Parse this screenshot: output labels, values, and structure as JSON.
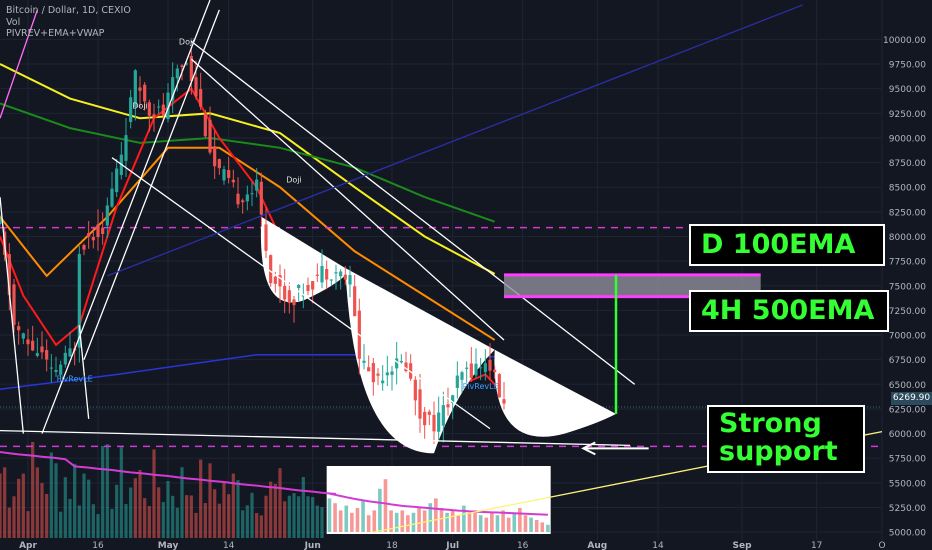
{
  "header": {
    "title": "Bitcoin / Dollar, 1D, CEXIO",
    "volume_label": "Vol",
    "indicators_label": "PIVREV+EMA+VWAP"
  },
  "last_price_tag": "6269.90",
  "annotations": {
    "d100ema": "D 100EMA",
    "h4_500ema": "4H 500EMA",
    "support_line1": "Strong",
    "support_line2": "support"
  },
  "candle_markers": [
    {
      "text": "Doji",
      "date": "2018-05-05",
      "price": 9950
    },
    {
      "text": "Doji",
      "date": "2018-04-25",
      "price": 9300
    },
    {
      "text": "Doji",
      "date": "2018-05-28",
      "price": 8550
    },
    {
      "text": "PivRevLE",
      "date": "2018-04-11",
      "price": 6530
    },
    {
      "text": "PivRevLE",
      "date": "2018-07-07",
      "price": 6450
    }
  ],
  "colors": {
    "background": "#131722",
    "up": "#26a69a",
    "down": "#ef5350",
    "ema_fast": "#ff1a1a",
    "ema_orange": "#ff8c00",
    "ema_yellow": "#f7f01e",
    "ema_green": "#1b8a1b",
    "vwap_blue": "#2835d8",
    "volume_ma": "#d33bd3",
    "dashed_level": "#d13bd3",
    "zone": "#8f8f9a",
    "zone_border": "#ff3cff",
    "target_line": "#33ff33"
  },
  "chart_data": {
    "type": "candlestick",
    "title": "Bitcoin / Dollar, 1D, CEXIO",
    "y_axis": {
      "range": [
        4920,
        10400
      ],
      "ticks": [
        5000,
        5250,
        5500,
        5750,
        6000,
        6250,
        6500,
        6750,
        7000,
        7250,
        7500,
        7750,
        8000,
        8250,
        8500,
        8750,
        9000,
        9250,
        9500,
        9750,
        10000
      ]
    },
    "x_axis": {
      "range": [
        "2018-03-26",
        "2018-10-01"
      ],
      "ticks": [
        {
          "label": "Apr",
          "date": "2018-04-01"
        },
        {
          "label": "16",
          "date": "2018-04-16"
        },
        {
          "label": "May",
          "date": "2018-05-01"
        },
        {
          "label": "14",
          "date": "2018-05-14"
        },
        {
          "label": "Jun",
          "date": "2018-06-01"
        },
        {
          "label": "18",
          "date": "2018-06-18"
        },
        {
          "label": "Jul",
          "date": "2018-07-01"
        },
        {
          "label": "16",
          "date": "2018-07-16"
        },
        {
          "label": "Aug",
          "date": "2018-08-01"
        },
        {
          "label": "14",
          "date": "2018-08-14"
        },
        {
          "label": "Sep",
          "date": "2018-09-01"
        },
        {
          "label": "17",
          "date": "2018-09-17"
        },
        {
          "label": "O",
          "date": "2018-10-01"
        }
      ]
    },
    "close_path": [
      [
        "2018-03-26",
        8100
      ],
      [
        "2018-03-29",
        7100
      ],
      [
        "2018-04-01",
        6900
      ],
      [
        "2018-04-04",
        6800
      ],
      [
        "2018-04-06",
        6600
      ],
      [
        "2018-04-09",
        6750
      ],
      [
        "2018-04-11",
        6900
      ],
      [
        "2018-04-12",
        7900
      ],
      [
        "2018-04-14",
        8000
      ],
      [
        "2018-04-17",
        8100
      ],
      [
        "2018-04-21",
        8850
      ],
      [
        "2018-04-24",
        9600
      ],
      [
        "2018-04-27",
        9300
      ],
      [
        "2018-04-30",
        9250
      ],
      [
        "2018-05-03",
        9700
      ],
      [
        "2018-05-05",
        9800
      ],
      [
        "2018-05-08",
        9300
      ],
      [
        "2018-05-11",
        8700
      ],
      [
        "2018-05-13",
        8600
      ],
      [
        "2018-05-16",
        8400
      ],
      [
        "2018-05-20",
        8500
      ],
      [
        "2018-05-23",
        7600
      ],
      [
        "2018-05-27",
        7350
      ],
      [
        "2018-05-31",
        7500
      ],
      [
        "2018-06-03",
        7650
      ],
      [
        "2018-06-06",
        7650
      ],
      [
        "2018-06-09",
        7550
      ],
      [
        "2018-06-11",
        6800
      ],
      [
        "2018-06-14",
        6550
      ],
      [
        "2018-06-18",
        6700
      ],
      [
        "2018-06-21",
        6700
      ],
      [
        "2018-06-24",
        6200
      ],
      [
        "2018-06-27",
        6100
      ],
      [
        "2018-06-30",
        6300
      ],
      [
        "2018-07-03",
        6600
      ],
      [
        "2018-07-07",
        6700
      ],
      [
        "2018-07-09",
        6700
      ],
      [
        "2018-07-11",
        6400
      ],
      [
        "2018-07-12",
        6270
      ]
    ],
    "last_price": 6269.9,
    "levels": [
      {
        "kind": "dashed",
        "price": 8090
      },
      {
        "kind": "dashed",
        "price": 5870
      },
      {
        "kind": "dotted",
        "price": 6269.9
      }
    ],
    "resistance_zone": {
      "from": "2018-07-12",
      "to": "2018-09-05",
      "low": 7390,
      "high": 7610
    },
    "target_move": {
      "date": "2018-08-05",
      "from": 6200,
      "to": 7610
    },
    "support_arrow": {
      "from": "2018-08-12",
      "to": "2018-07-29",
      "price": 5850
    },
    "moving_averages": [
      {
        "color_key": "ema_yellow",
        "points": [
          [
            "2018-03-26",
            9750
          ],
          [
            "2018-04-10",
            9400
          ],
          [
            "2018-04-25",
            9200
          ],
          [
            "2018-05-10",
            9250
          ],
          [
            "2018-05-25",
            9050
          ],
          [
            "2018-06-10",
            8500
          ],
          [
            "2018-06-25",
            8000
          ],
          [
            "2018-07-10",
            7620
          ]
        ]
      },
      {
        "color_key": "ema_green",
        "points": [
          [
            "2018-03-26",
            9350
          ],
          [
            "2018-04-10",
            9100
          ],
          [
            "2018-04-25",
            8950
          ],
          [
            "2018-05-10",
            9000
          ],
          [
            "2018-05-25",
            8900
          ],
          [
            "2018-06-10",
            8700
          ],
          [
            "2018-06-25",
            8400
          ],
          [
            "2018-07-10",
            8150
          ]
        ]
      },
      {
        "color_key": "ema_orange",
        "points": [
          [
            "2018-03-26",
            8200
          ],
          [
            "2018-04-05",
            7600
          ],
          [
            "2018-04-18",
            8200
          ],
          [
            "2018-05-01",
            8900
          ],
          [
            "2018-05-12",
            8900
          ],
          [
            "2018-05-25",
            8500
          ],
          [
            "2018-06-10",
            7850
          ],
          [
            "2018-06-25",
            7400
          ],
          [
            "2018-07-10",
            6950
          ]
        ]
      },
      {
        "color_key": "ema_fast",
        "points": [
          [
            "2018-03-26",
            8000
          ],
          [
            "2018-03-31",
            7400
          ],
          [
            "2018-04-07",
            6900
          ],
          [
            "2018-04-12",
            7100
          ],
          [
            "2018-04-20",
            8300
          ],
          [
            "2018-04-28",
            9200
          ],
          [
            "2018-05-06",
            9500
          ],
          [
            "2018-05-12",
            9000
          ],
          [
            "2018-05-20",
            8500
          ],
          [
            "2018-05-27",
            7800
          ],
          [
            "2018-06-05",
            7600
          ],
          [
            "2018-06-09",
            7650
          ],
          [
            "2018-06-14",
            6900
          ],
          [
            "2018-06-20",
            6600
          ],
          [
            "2018-06-27",
            6400
          ],
          [
            "2018-07-03",
            6500
          ],
          [
            "2018-07-08",
            6600
          ],
          [
            "2018-07-12",
            6400
          ]
        ]
      },
      {
        "color_key": "vwap_blue",
        "points": [
          [
            "2018-03-26",
            6450
          ],
          [
            "2018-04-20",
            6600
          ],
          [
            "2018-05-20",
            6800
          ],
          [
            "2018-06-20",
            6800
          ],
          [
            "2018-07-10",
            6780
          ]
        ]
      }
    ],
    "trendlines": [
      {
        "color": "#ffffff",
        "from": [
          "2018-05-06",
          9980
        ],
        "to": [
          "2018-08-09",
          6500
        ]
      },
      {
        "color": "#ffffff",
        "from": [
          "2018-05-06",
          9800
        ],
        "to": [
          "2018-07-12",
          6950
        ]
      },
      {
        "color": "#ffffff",
        "from": [
          "2018-04-19",
          8800
        ],
        "to": [
          "2018-07-09",
          6050
        ]
      },
      {
        "color": "#ffffff",
        "from": [
          "2018-03-26",
          6030
        ],
        "to": [
          "2018-08-08",
          5880
        ]
      },
      {
        "color": "#ffffff",
        "from": [
          "2018-04-04",
          6000
        ],
        "to": [
          "2018-05-10",
          10400
        ]
      },
      {
        "color": "#ffffff",
        "from": [
          "2018-04-13",
          6750
        ],
        "to": [
          "2018-05-12",
          10300
        ]
      },
      {
        "color": "#ffffff",
        "from": [
          "2018-03-26",
          8400
        ],
        "to": [
          "2018-03-31",
          6000
        ]
      },
      {
        "color": "#ffffff",
        "from": [
          "2018-04-12",
          7100
        ],
        "to": [
          "2018-04-14",
          6150
        ]
      },
      {
        "color": "#2a2fa6",
        "from": [
          "2018-04-18",
          7600
        ],
        "to": [
          "2018-09-14",
          10350
        ]
      },
      {
        "color": "#ff6ffb",
        "from": [
          "2018-03-26",
          9200
        ],
        "to": [
          "2018-04-03",
          10300
        ]
      },
      {
        "color": "#fff27a",
        "from": [
          "2018-06-14",
          5000
        ],
        "to": [
          "2018-10-01",
          6020
        ]
      }
    ]
  },
  "volume_data": {
    "panel": {
      "from": "2018-06-04",
      "to": "2018-07-22"
    },
    "bars": [
      14,
      12,
      9,
      11,
      8,
      10,
      13,
      7,
      9,
      18,
      22,
      9,
      8,
      9,
      7,
      8,
      10,
      9,
      12,
      14,
      10,
      8,
      9,
      7,
      11,
      8,
      9,
      7,
      6,
      8,
      7,
      9,
      6,
      8,
      10,
      7,
      6,
      5,
      4,
      3
    ],
    "volume_ma": [
      16,
      15.5,
      15,
      14.5,
      14,
      13.6,
      13.2,
      12.8,
      12.5,
      12.2,
      11.9,
      11.5,
      11.2,
      10.9,
      10.7,
      10.5,
      10.3,
      10.1,
      9.9,
      9.7,
      9.5,
      9.3,
      9.1,
      8.9,
      8.8,
      8.6,
      8.5,
      8.4,
      8.3,
      8.2,
      8.1,
      8.0,
      7.9,
      7.8,
      7.7,
      7.6,
      7.5,
      7.4,
      7.3,
      7.2
    ]
  }
}
